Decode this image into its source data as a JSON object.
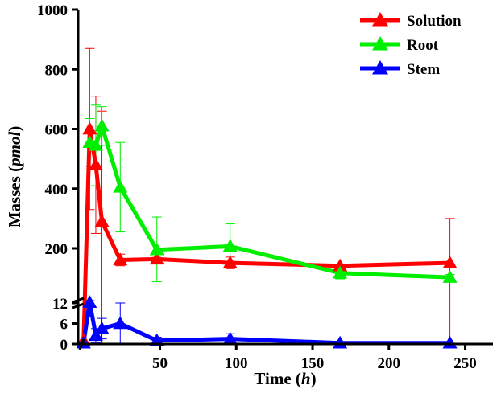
{
  "chart_data": {
    "type": "line",
    "xlabel": "Time (h)",
    "xlabel_main": "Time (",
    "xlabel_unit": "h",
    "xlabel_close": ")",
    "ylabel": "Masses (pmol)",
    "ylabel_main": "Masses (",
    "ylabel_unit": "pmol",
    "ylabel_close": ")",
    "x_ticks": [
      "50",
      "100",
      "150",
      "200",
      "250"
    ],
    "x_tick_values": [
      50,
      100,
      150,
      200,
      250
    ],
    "y_ticks_upper": [
      "200",
      "400",
      "600",
      "800",
      "1000"
    ],
    "y_tick_values_upper": [
      200,
      400,
      600,
      800,
      1000
    ],
    "y_ticks_lower": [
      "0",
      "6",
      "12"
    ],
    "y_tick_values_lower": [
      0,
      6,
      12
    ],
    "y_axis_break": true,
    "xlim": [
      -2,
      270
    ],
    "legend_position": "top-right",
    "series": [
      {
        "name": "Solution",
        "color": "#ff0000",
        "x": [
          0,
          4,
          8,
          12,
          24,
          48,
          96,
          168,
          240
        ],
        "y": [
          1,
          600,
          480,
          290,
          160,
          163,
          150,
          140,
          150
        ],
        "err": [
          0,
          270,
          230,
          370,
          20,
          10,
          20,
          5,
          150
        ]
      },
      {
        "name": "Root",
        "color": "#00ee00",
        "x": [
          4,
          8,
          12,
          24,
          48,
          96,
          168,
          240
        ],
        "y": [
          555,
          545,
          610,
          405,
          195,
          207,
          115,
          100
        ],
        "err": [
          80,
          135,
          65,
          150,
          110,
          75,
          20,
          10
        ]
      },
      {
        "name": "Stem",
        "color": "#0000ff",
        "x": [
          0,
          4,
          8,
          12,
          24,
          48,
          96,
          168,
          240
        ],
        "y": [
          0.3,
          14,
          2.5,
          4.5,
          6,
          1,
          1.5,
          0.3,
          0.3
        ],
        "err": [
          0,
          6,
          2,
          3,
          6,
          1,
          1.5,
          0.3,
          0.3
        ]
      }
    ]
  }
}
